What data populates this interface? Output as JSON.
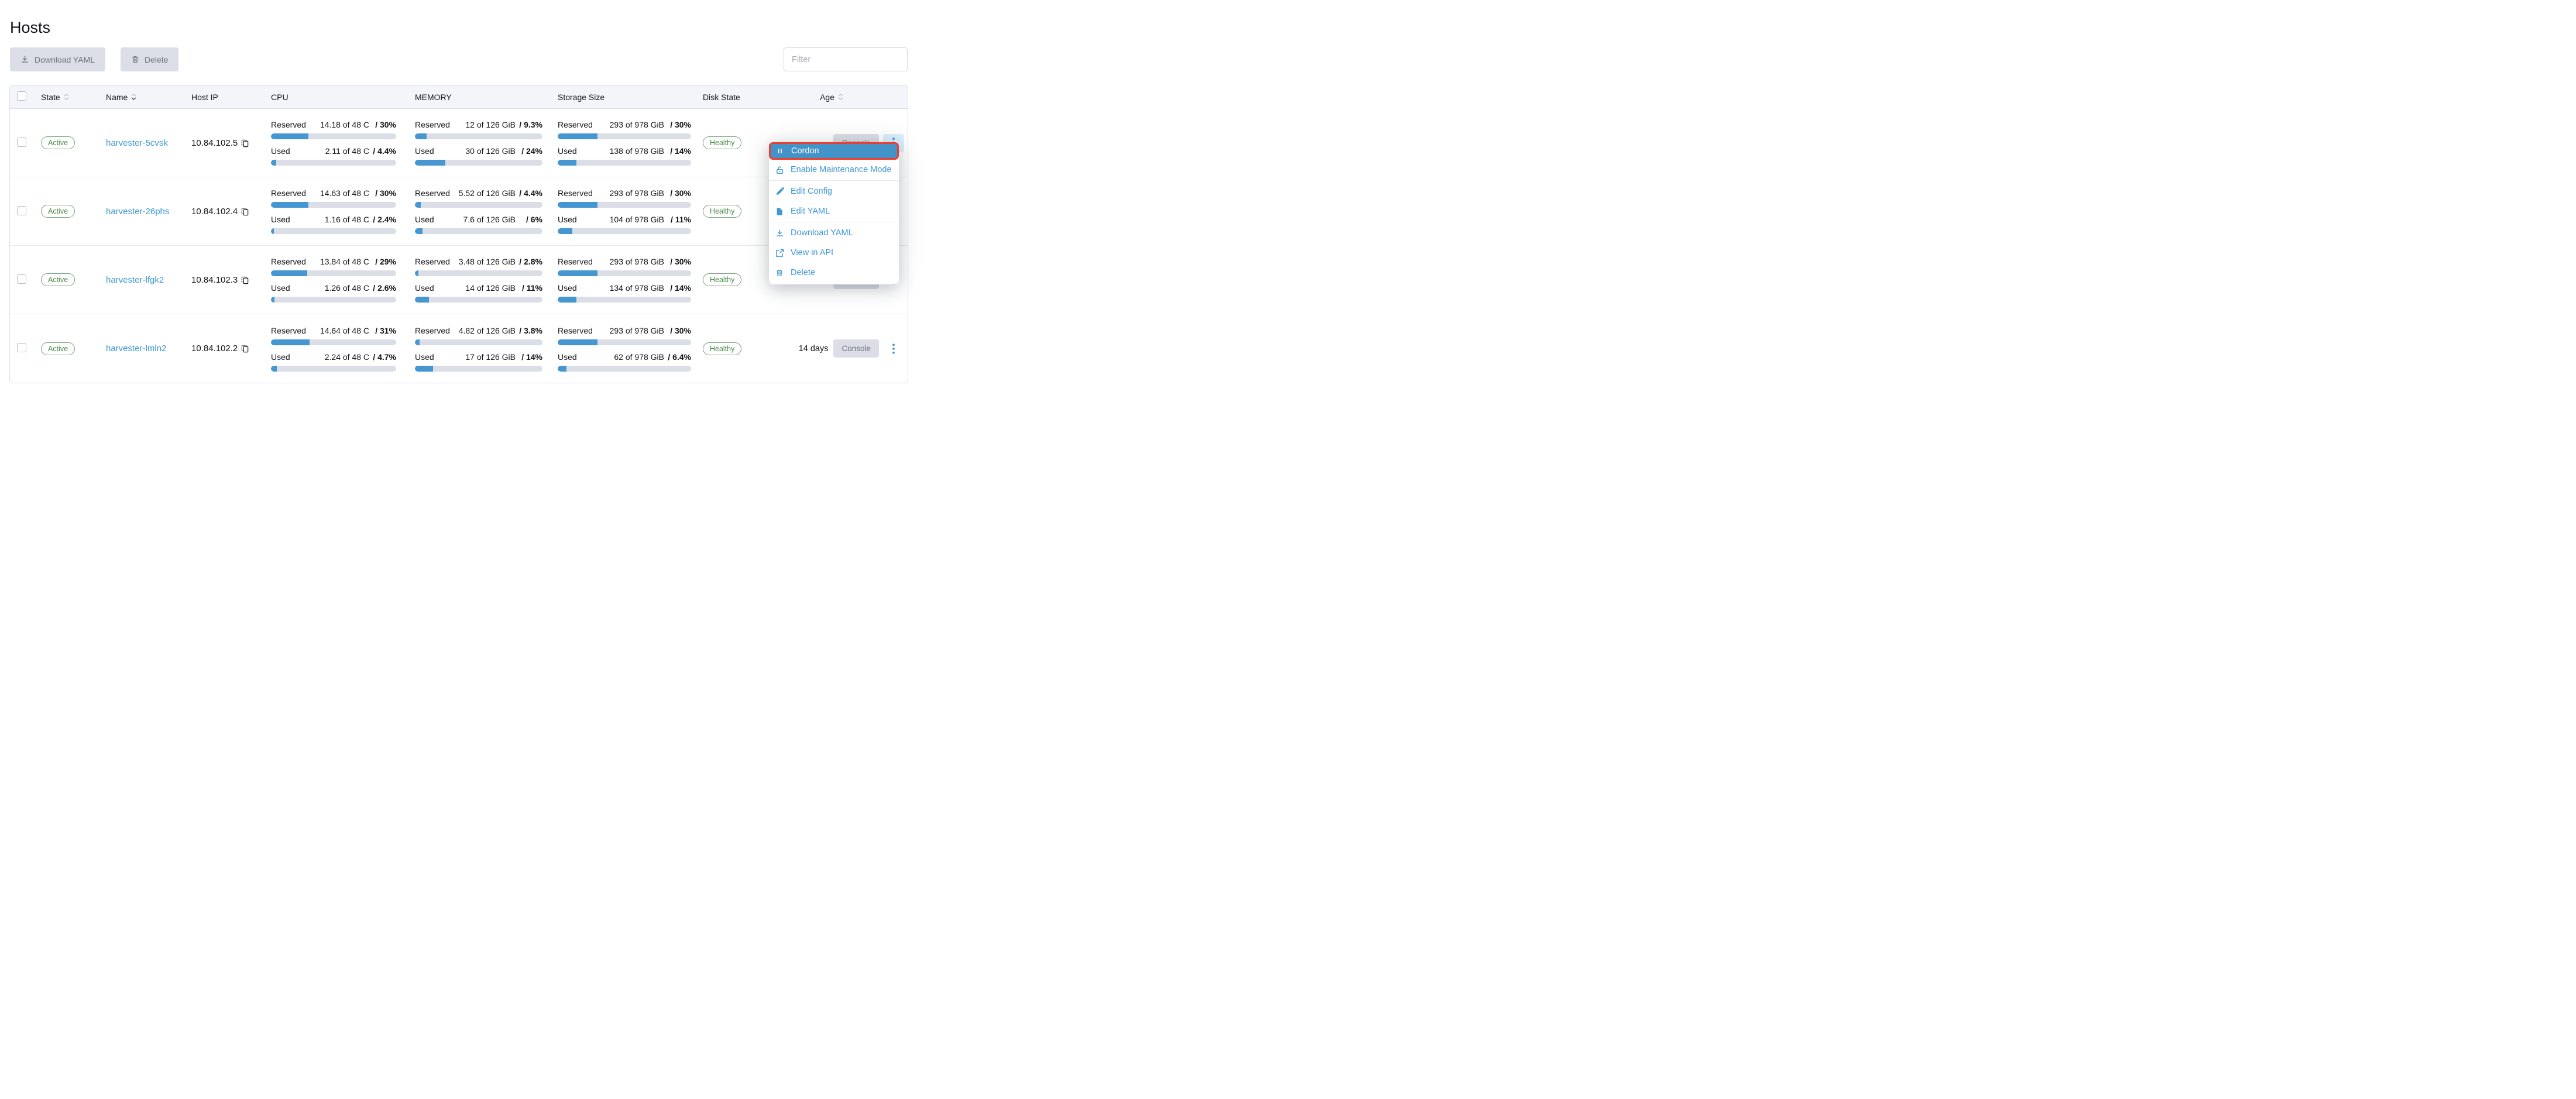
{
  "page": {
    "title": "Hosts"
  },
  "toolbar": {
    "download_yaml_label": "Download YAML",
    "delete_label": "Delete",
    "filter_placeholder": "Filter"
  },
  "colors": {
    "accent_blue": "#3F98D3",
    "bar_fill_blue": "#4596D1",
    "menu_highlight_blue": "#4392C8",
    "highlight_outline_red": "#E8402F",
    "success_green": "#4E8A4E",
    "disabled_button_bg": "#DCDEE7",
    "header_bg": "#F4F5FA"
  },
  "table": {
    "headers": {
      "state": "State",
      "name": "Name",
      "host_ip": "Host IP",
      "cpu": "CPU",
      "memory": "MEMORY",
      "storage_size": "Storage Size",
      "disk_state": "Disk State",
      "age": "Age"
    },
    "labels": {
      "reserved": "Reserved",
      "used": "Used",
      "console": "Console"
    },
    "rows": [
      {
        "state": "Active",
        "name": "harvester-5cvsk",
        "host_ip": "10.84.102.5",
        "cpu": {
          "reserved": {
            "text": "14.18 of 48 C",
            "pct_label": "/ 30%",
            "pct": 30
          },
          "used": {
            "text": "2.11 of 48 C",
            "pct_label": "/ 4.4%",
            "pct": 4.4
          }
        },
        "memory": {
          "reserved": {
            "text": "12 of 126 GiB",
            "pct_label": "/ 9.3%",
            "pct": 9.3
          },
          "used": {
            "text": "30 of 126 GiB",
            "pct_label": "/ 24%",
            "pct": 24
          }
        },
        "storage": {
          "reserved": {
            "text": "293 of 978 GiB",
            "pct_label": "/ 30%",
            "pct": 30
          },
          "used": {
            "text": "138 of 978 GiB",
            "pct_label": "/ 14%",
            "pct": 14
          }
        },
        "disk_state": "Healthy",
        "age": ""
      },
      {
        "state": "Active",
        "name": "harvester-26phs",
        "host_ip": "10.84.102.4",
        "cpu": {
          "reserved": {
            "text": "14.63 of 48 C",
            "pct_label": "/ 30%",
            "pct": 30
          },
          "used": {
            "text": "1.16 of 48 C",
            "pct_label": "/ 2.4%",
            "pct": 2.4
          }
        },
        "memory": {
          "reserved": {
            "text": "5.52 of 126 GiB",
            "pct_label": "/ 4.4%",
            "pct": 4.4
          },
          "used": {
            "text": "7.6 of 126 GiB",
            "pct_label": "/ 6%",
            "pct": 6
          }
        },
        "storage": {
          "reserved": {
            "text": "293 of 978 GiB",
            "pct_label": "/ 30%",
            "pct": 30
          },
          "used": {
            "text": "104 of 978 GiB",
            "pct_label": "/ 11%",
            "pct": 11
          }
        },
        "disk_state": "Healthy",
        "age": ""
      },
      {
        "state": "Active",
        "name": "harvester-lfgk2",
        "host_ip": "10.84.102.3",
        "cpu": {
          "reserved": {
            "text": "13.84 of 48 C",
            "pct_label": "/ 29%",
            "pct": 29
          },
          "used": {
            "text": "1.26 of 48 C",
            "pct_label": "/ 2.6%",
            "pct": 2.6
          }
        },
        "memory": {
          "reserved": {
            "text": "3.48 of 126 GiB",
            "pct_label": "/ 2.8%",
            "pct": 2.8
          },
          "used": {
            "text": "14 of 126 GiB",
            "pct_label": "/ 11%",
            "pct": 11
          }
        },
        "storage": {
          "reserved": {
            "text": "293 of 978 GiB",
            "pct_label": "/ 30%",
            "pct": 30
          },
          "used": {
            "text": "134 of 978 GiB",
            "pct_label": "/ 14%",
            "pct": 14
          }
        },
        "disk_state": "Healthy",
        "age": ""
      },
      {
        "state": "Active",
        "name": "harvester-lmln2",
        "host_ip": "10.84.102.2",
        "cpu": {
          "reserved": {
            "text": "14.64 of 48 C",
            "pct_label": "/ 31%",
            "pct": 31
          },
          "used": {
            "text": "2.24 of 48 C",
            "pct_label": "/ 4.7%",
            "pct": 4.7
          }
        },
        "memory": {
          "reserved": {
            "text": "4.82 of 126 GiB",
            "pct_label": "/ 3.8%",
            "pct": 3.8
          },
          "used": {
            "text": "17 of 126 GiB",
            "pct_label": "/ 14%",
            "pct": 14
          }
        },
        "storage": {
          "reserved": {
            "text": "293 of 978 GiB",
            "pct_label": "/ 30%",
            "pct": 30
          },
          "used": {
            "text": "62 of 978 GiB",
            "pct_label": "/ 6.4%",
            "pct": 6.4
          }
        },
        "disk_state": "Healthy",
        "age": "14 days"
      }
    ]
  },
  "context_menu": {
    "items": [
      {
        "label": "Cordon",
        "icon": "pause-icon",
        "highlighted": true
      },
      {
        "label": "Enable Maintenance Mode",
        "icon": "unlock-icon"
      },
      {
        "label": "Edit Config",
        "icon": "pencil-icon"
      },
      {
        "label": "Edit YAML",
        "icon": "file-icon"
      },
      {
        "label": "Download YAML",
        "icon": "download-icon"
      },
      {
        "label": "View in API",
        "icon": "external-link-icon"
      },
      {
        "label": "Delete",
        "icon": "trash-icon"
      }
    ]
  }
}
